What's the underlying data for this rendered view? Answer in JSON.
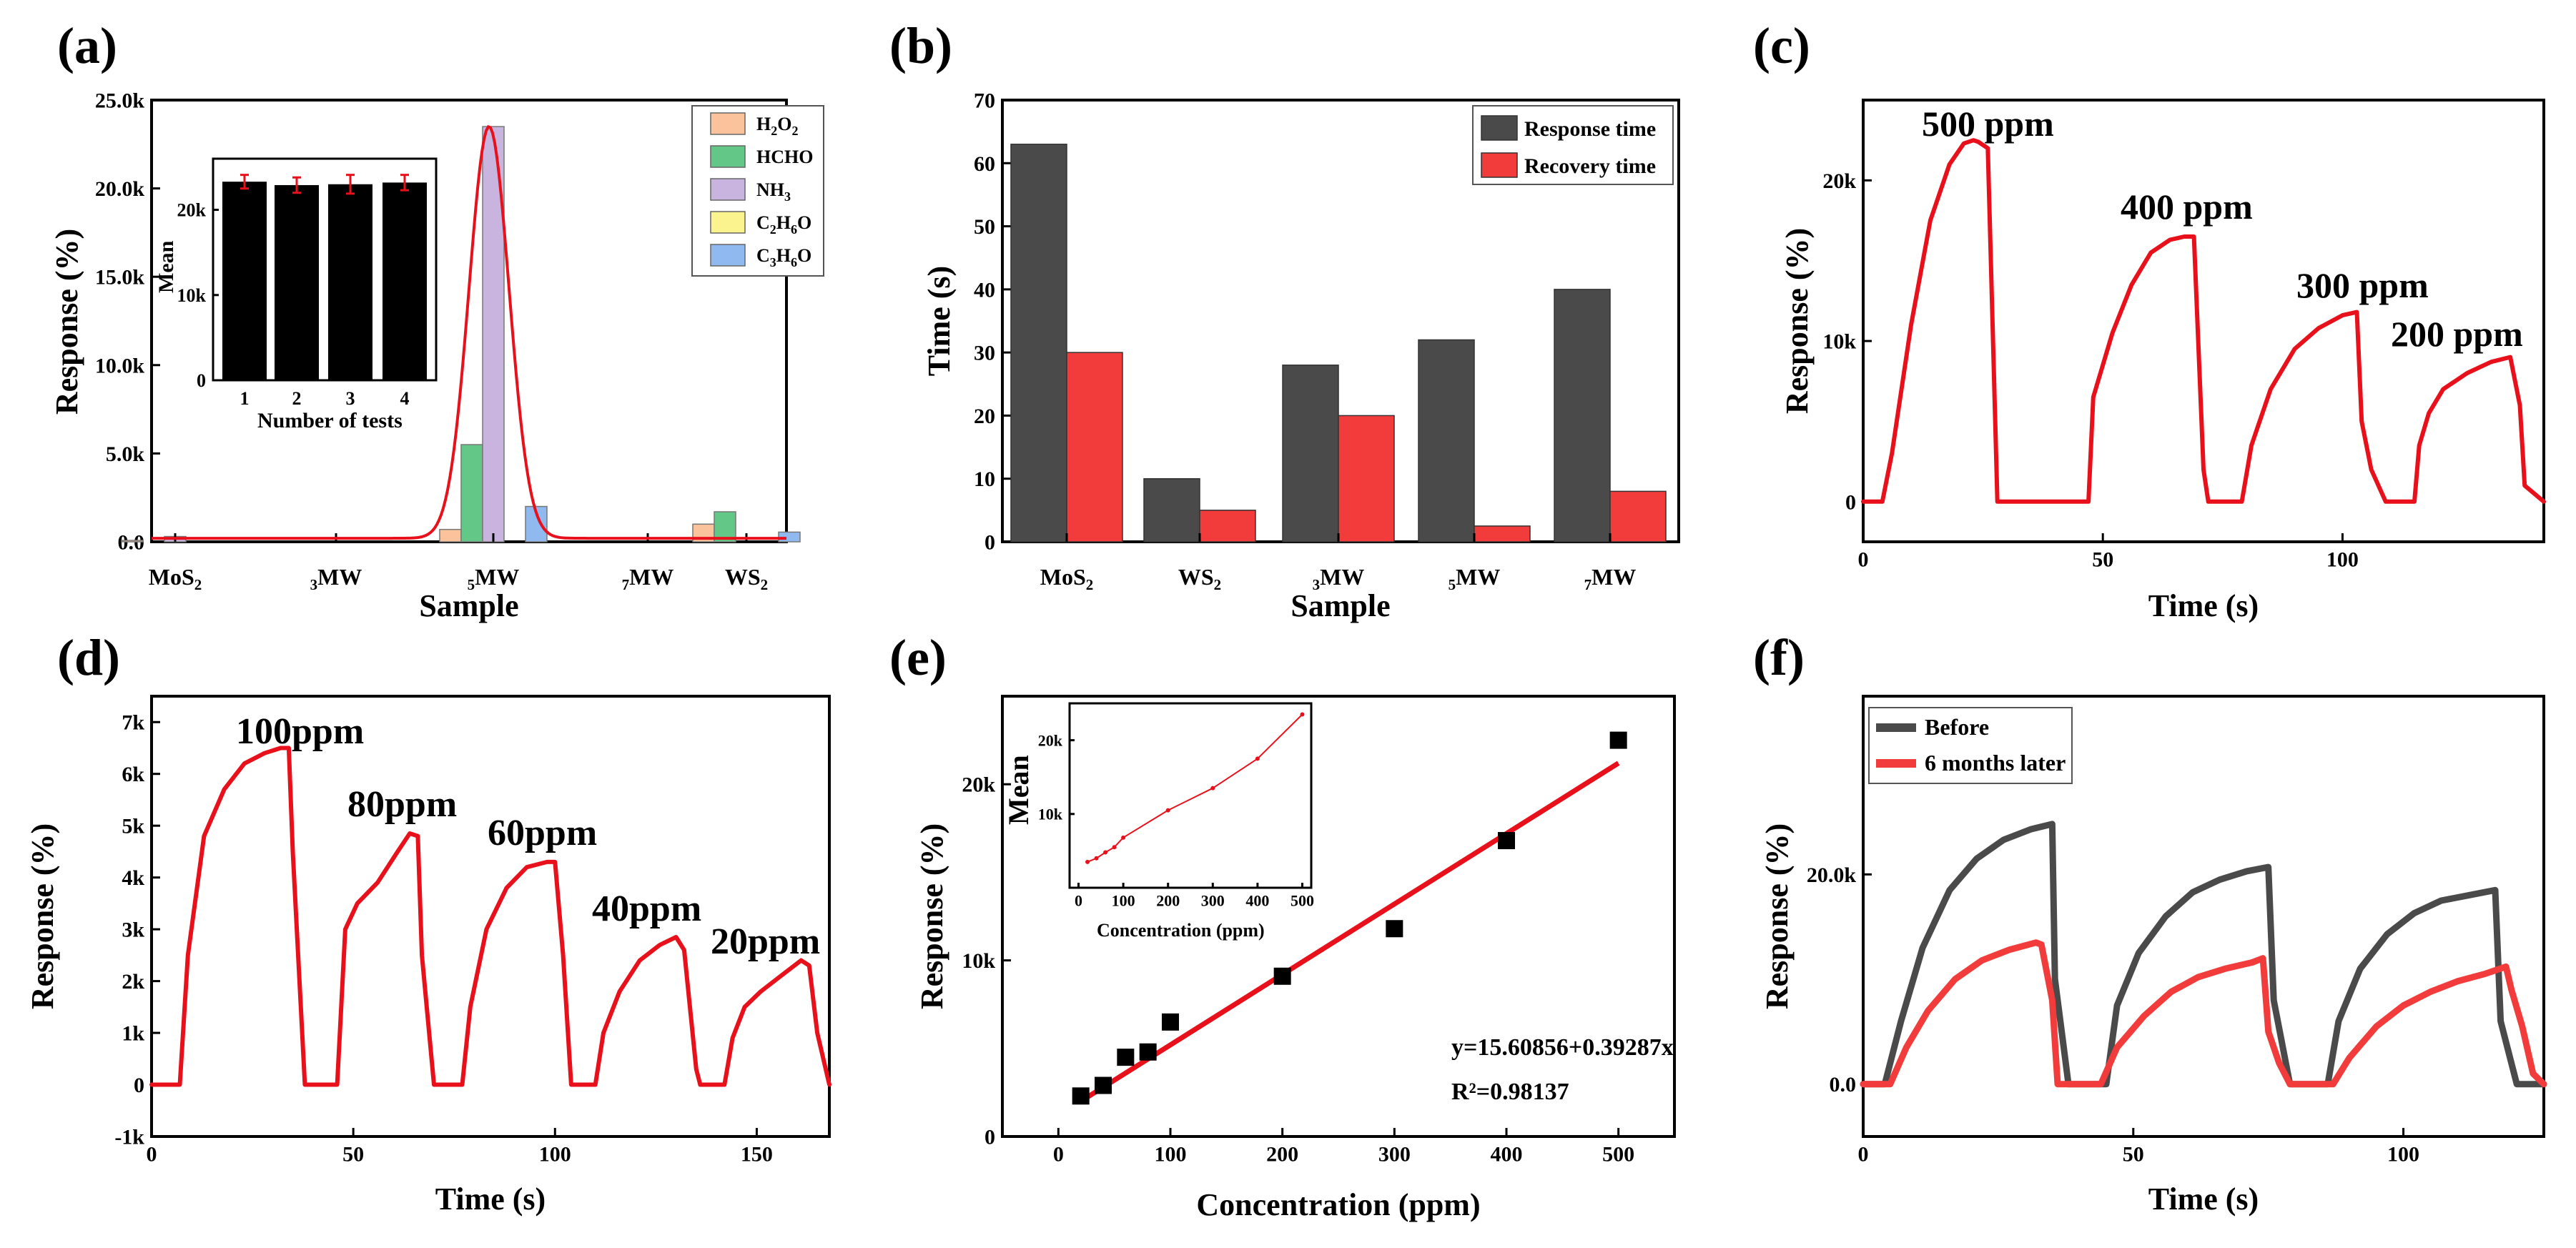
{
  "colors": {
    "red": "#e8101a",
    "dark": "#4a4a4a",
    "black": "#000000",
    "bar_red": "#f23c3c",
    "h2o2": "#fbc39b",
    "hcho": "#63c887",
    "nh3": "#c8b4de",
    "c2h6o": "#fbf48e",
    "c3h6o": "#8fb9ef"
  },
  "panels": {
    "a": {
      "label": "(a)",
      "xlabel": "Sample",
      "ylabel": "Response (%)",
      "categories": [
        "MoS2",
        "3MW",
        "5MW",
        "7MW",
        "WS2"
      ],
      "yticks": [
        "0.0",
        "5.0k",
        "10.0k",
        "15.0k",
        "20.0k",
        "25.0k"
      ],
      "legend": [
        "H2O2",
        "HCHO",
        "NH3",
        "C2H6O",
        "C3H6O"
      ],
      "inset": {
        "ylabel": "Mean",
        "xlabel": "Number of tests",
        "yticks": [
          "0",
          "10k",
          "20k"
        ],
        "xticks": [
          "1",
          "2",
          "3",
          "4"
        ]
      }
    },
    "b": {
      "label": "(b)",
      "xlabel": "Sample",
      "ylabel": "Time (s)",
      "categories": [
        "MoS2",
        "WS2",
        "3MW",
        "5MW",
        "7MW"
      ],
      "yticks": [
        "0",
        "10",
        "20",
        "30",
        "40",
        "50",
        "60",
        "70"
      ],
      "legend": [
        "Response time",
        "Recovery time"
      ]
    },
    "c": {
      "label": "(c)",
      "xlabel": "Time (s)",
      "ylabel": "Response (%)",
      "yticks": [
        "0",
        "10k",
        "20k"
      ],
      "xticks": [
        "0",
        "50",
        "100"
      ],
      "annotations": [
        "500 ppm",
        "400 ppm",
        "300 ppm",
        "200 ppm"
      ]
    },
    "d": {
      "label": "(d)",
      "xlabel": "Time (s)",
      "ylabel": "Response (%)",
      "yticks": [
        "-1k",
        "0",
        "1k",
        "2k",
        "3k",
        "4k",
        "5k",
        "6k",
        "7k"
      ],
      "xticks": [
        "0",
        "50",
        "100",
        "150"
      ],
      "annotations": [
        "100ppm",
        "80ppm",
        "60ppm",
        "40ppm",
        "20ppm"
      ]
    },
    "e": {
      "label": "(e)",
      "xlabel": "Concentration (ppm)",
      "ylabel": "Response (%)",
      "yticks": [
        "0",
        "10k",
        "20k"
      ],
      "xticks": [
        "0",
        "100",
        "200",
        "300",
        "400",
        "500"
      ],
      "equation": "y=15.60856+0.39287x",
      "r2": "R²=0.98137",
      "inset": {
        "ylabel": "Mean",
        "xlabel": "Concentration (ppm)",
        "yticks": [
          "10k",
          "20k"
        ],
        "xticks": [
          "0",
          "100",
          "200",
          "300",
          "400",
          "500"
        ]
      }
    },
    "f": {
      "label": "(f)",
      "xlabel": "Time (s)",
      "ylabel": "Response (%)",
      "yticks": [
        "0.0",
        "20.0k"
      ],
      "xticks": [
        "0",
        "50",
        "100"
      ],
      "legend": [
        "Before",
        "6 months later"
      ]
    }
  },
  "chart_data": [
    {
      "id": "a",
      "type": "bar",
      "title": "(a)",
      "xlabel": "Sample",
      "ylabel": "Response (%)",
      "categories": [
        "MoS2",
        "3MW",
        "5MW",
        "7MW",
        "WS2"
      ],
      "ylim": [
        0,
        25000
      ],
      "series": [
        {
          "name": "H2O2",
          "values": [
            80,
            0,
            700,
            0,
            1000
          ]
        },
        {
          "name": "HCHO",
          "values": [
            0,
            0,
            5500,
            0,
            1700
          ]
        },
        {
          "name": "NH3",
          "values": [
            300,
            0,
            23500,
            0,
            0
          ]
        },
        {
          "name": "C2H6O",
          "values": [
            0,
            0,
            0,
            0,
            0
          ]
        },
        {
          "name": "C3H6O",
          "values": [
            0,
            0,
            2000,
            0,
            550
          ]
        }
      ],
      "fit_curve_peak": 23500,
      "inset": {
        "type": "bar",
        "categories": [
          1,
          2,
          3,
          4
        ],
        "values": [
          23300,
          22900,
          23000,
          23200
        ],
        "errors": [
          800,
          900,
          1100,
          900
        ],
        "ylim": [
          0,
          26000
        ]
      }
    },
    {
      "id": "b",
      "type": "bar",
      "title": "(b)",
      "xlabel": "Sample",
      "ylabel": "Time (s)",
      "categories": [
        "MoS2",
        "WS2",
        "3MW",
        "5MW",
        "7MW"
      ],
      "ylim": [
        0,
        70
      ],
      "series": [
        {
          "name": "Response time",
          "values": [
            63,
            10,
            28,
            32,
            40
          ]
        },
        {
          "name": "Recovery time",
          "values": [
            30,
            5,
            20,
            2.5,
            8
          ]
        }
      ]
    },
    {
      "id": "c",
      "type": "line",
      "title": "(c)",
      "xlabel": "Time (s)",
      "ylabel": "Response (%)",
      "xlim": [
        0,
        142
      ],
      "ylim": [
        -2500,
        25000
      ],
      "x": [
        0,
        4,
        6,
        10,
        14,
        18,
        21,
        23,
        24,
        26,
        28,
        47,
        48,
        52,
        56,
        60,
        64,
        67,
        69,
        71,
        72,
        79,
        81,
        85,
        90,
        95,
        100,
        103,
        104,
        106,
        109,
        115,
        116,
        118,
        121,
        126,
        131,
        135,
        137,
        138,
        142
      ],
      "y": [
        0,
        0,
        3000,
        11000,
        17500,
        21000,
        22300,
        22500,
        22400,
        22000,
        0,
        0,
        6500,
        10500,
        13500,
        15500,
        16300,
        16500,
        16500,
        2000,
        0,
        0,
        3500,
        7000,
        9500,
        10800,
        11600,
        11800,
        5000,
        2000,
        0,
        0,
        3500,
        5500,
        7000,
        8000,
        8700,
        9000,
        6000,
        1000,
        0
      ]
    },
    {
      "id": "d",
      "type": "line",
      "title": "(d)",
      "xlabel": "Time (s)",
      "ylabel": "Response (%)",
      "xlim": [
        0,
        168
      ],
      "ylim": [
        -1000,
        7500
      ],
      "x": [
        0,
        7,
        9,
        13,
        18,
        23,
        28,
        32,
        34,
        35,
        38,
        46,
        48,
        51,
        56,
        61,
        64,
        66,
        67,
        70,
        71,
        77,
        79,
        83,
        88,
        93,
        98,
        100,
        102,
        104,
        110,
        112,
        116,
        121,
        126,
        130,
        132,
        135,
        136,
        142,
        144,
        147,
        151,
        156,
        161,
        163,
        165,
        168
      ],
      "y": [
        0,
        0,
        2500,
        4800,
        5700,
        6200,
        6400,
        6500,
        6500,
        4500,
        0,
        0,
        3000,
        3500,
        3900,
        4500,
        4850,
        4800,
        2500,
        0,
        0,
        0,
        1500,
        3000,
        3800,
        4200,
        4300,
        4300,
        2500,
        0,
        0,
        1000,
        1800,
        2400,
        2700,
        2850,
        2600,
        300,
        0,
        0,
        900,
        1500,
        1800,
        2100,
        2400,
        2300,
        1000,
        0
      ]
    },
    {
      "id": "e",
      "type": "scatter",
      "title": "(e)",
      "xlabel": "Concentration (ppm)",
      "ylabel": "Response (%)",
      "xlim": [
        -50,
        550
      ],
      "ylim": [
        0,
        25000
      ],
      "x": [
        20,
        40,
        60,
        80,
        100,
        200,
        300,
        400,
        500
      ],
      "y": [
        2300,
        2900,
        4500,
        4800,
        6500,
        9100,
        11800,
        16800,
        22500
      ],
      "fit": {
        "intercept": 15.60856,
        "slope": 0.39287,
        "r2": 0.98137,
        "line_y_at_20": 2000,
        "line_y_at_500": 21200
      },
      "inset": {
        "type": "line",
        "x": [
          20,
          40,
          60,
          80,
          100,
          200,
          300,
          400,
          500
        ],
        "y": [
          3500,
          4000,
          4800,
          5500,
          6800,
          10500,
          13500,
          17500,
          23500
        ],
        "xlim": [
          -20,
          520
        ],
        "ylim": [
          0,
          25000
        ]
      }
    },
    {
      "id": "f",
      "type": "line",
      "title": "(f)",
      "xlabel": "Time (s)",
      "ylabel": "Response (%)",
      "xlim": [
        0,
        126
      ],
      "ylim": [
        -5000,
        37000
      ],
      "series": [
        {
          "name": "Before",
          "x": [
            0,
            4,
            7,
            11,
            16,
            21,
            26,
            31,
            35,
            35.5,
            38,
            45,
            47,
            51,
            56,
            61,
            66,
            71,
            75,
            76,
            79,
            86,
            88,
            92,
            97,
            102,
            107,
            112,
            117,
            118,
            121,
            126
          ],
          "y": [
            0,
            0,
            6000,
            13000,
            18500,
            21500,
            23300,
            24300,
            24800,
            10000,
            0,
            0,
            7500,
            12500,
            16000,
            18300,
            19500,
            20300,
            20700,
            8000,
            0,
            0,
            6000,
            11000,
            14300,
            16300,
            17500,
            18000,
            18500,
            6000,
            0,
            0
          ]
        },
        {
          "name": "6 months later",
          "x": [
            0,
            5,
            8,
            12,
            17,
            22,
            27,
            32,
            33,
            35,
            36,
            44,
            47,
            52,
            57,
            62,
            67,
            72,
            74,
            75,
            77,
            79,
            87,
            90,
            95,
            100,
            105,
            110,
            115,
            119,
            120,
            122,
            124,
            126
          ],
          "y": [
            0,
            0,
            3500,
            7000,
            10000,
            11800,
            12800,
            13500,
            13300,
            8000,
            0,
            0,
            3500,
            6500,
            8800,
            10200,
            11000,
            11600,
            12000,
            5000,
            2000,
            0,
            0,
            2500,
            5500,
            7500,
            8800,
            9800,
            10500,
            11200,
            9000,
            5500,
            1000,
            0
          ]
        }
      ]
    }
  ]
}
